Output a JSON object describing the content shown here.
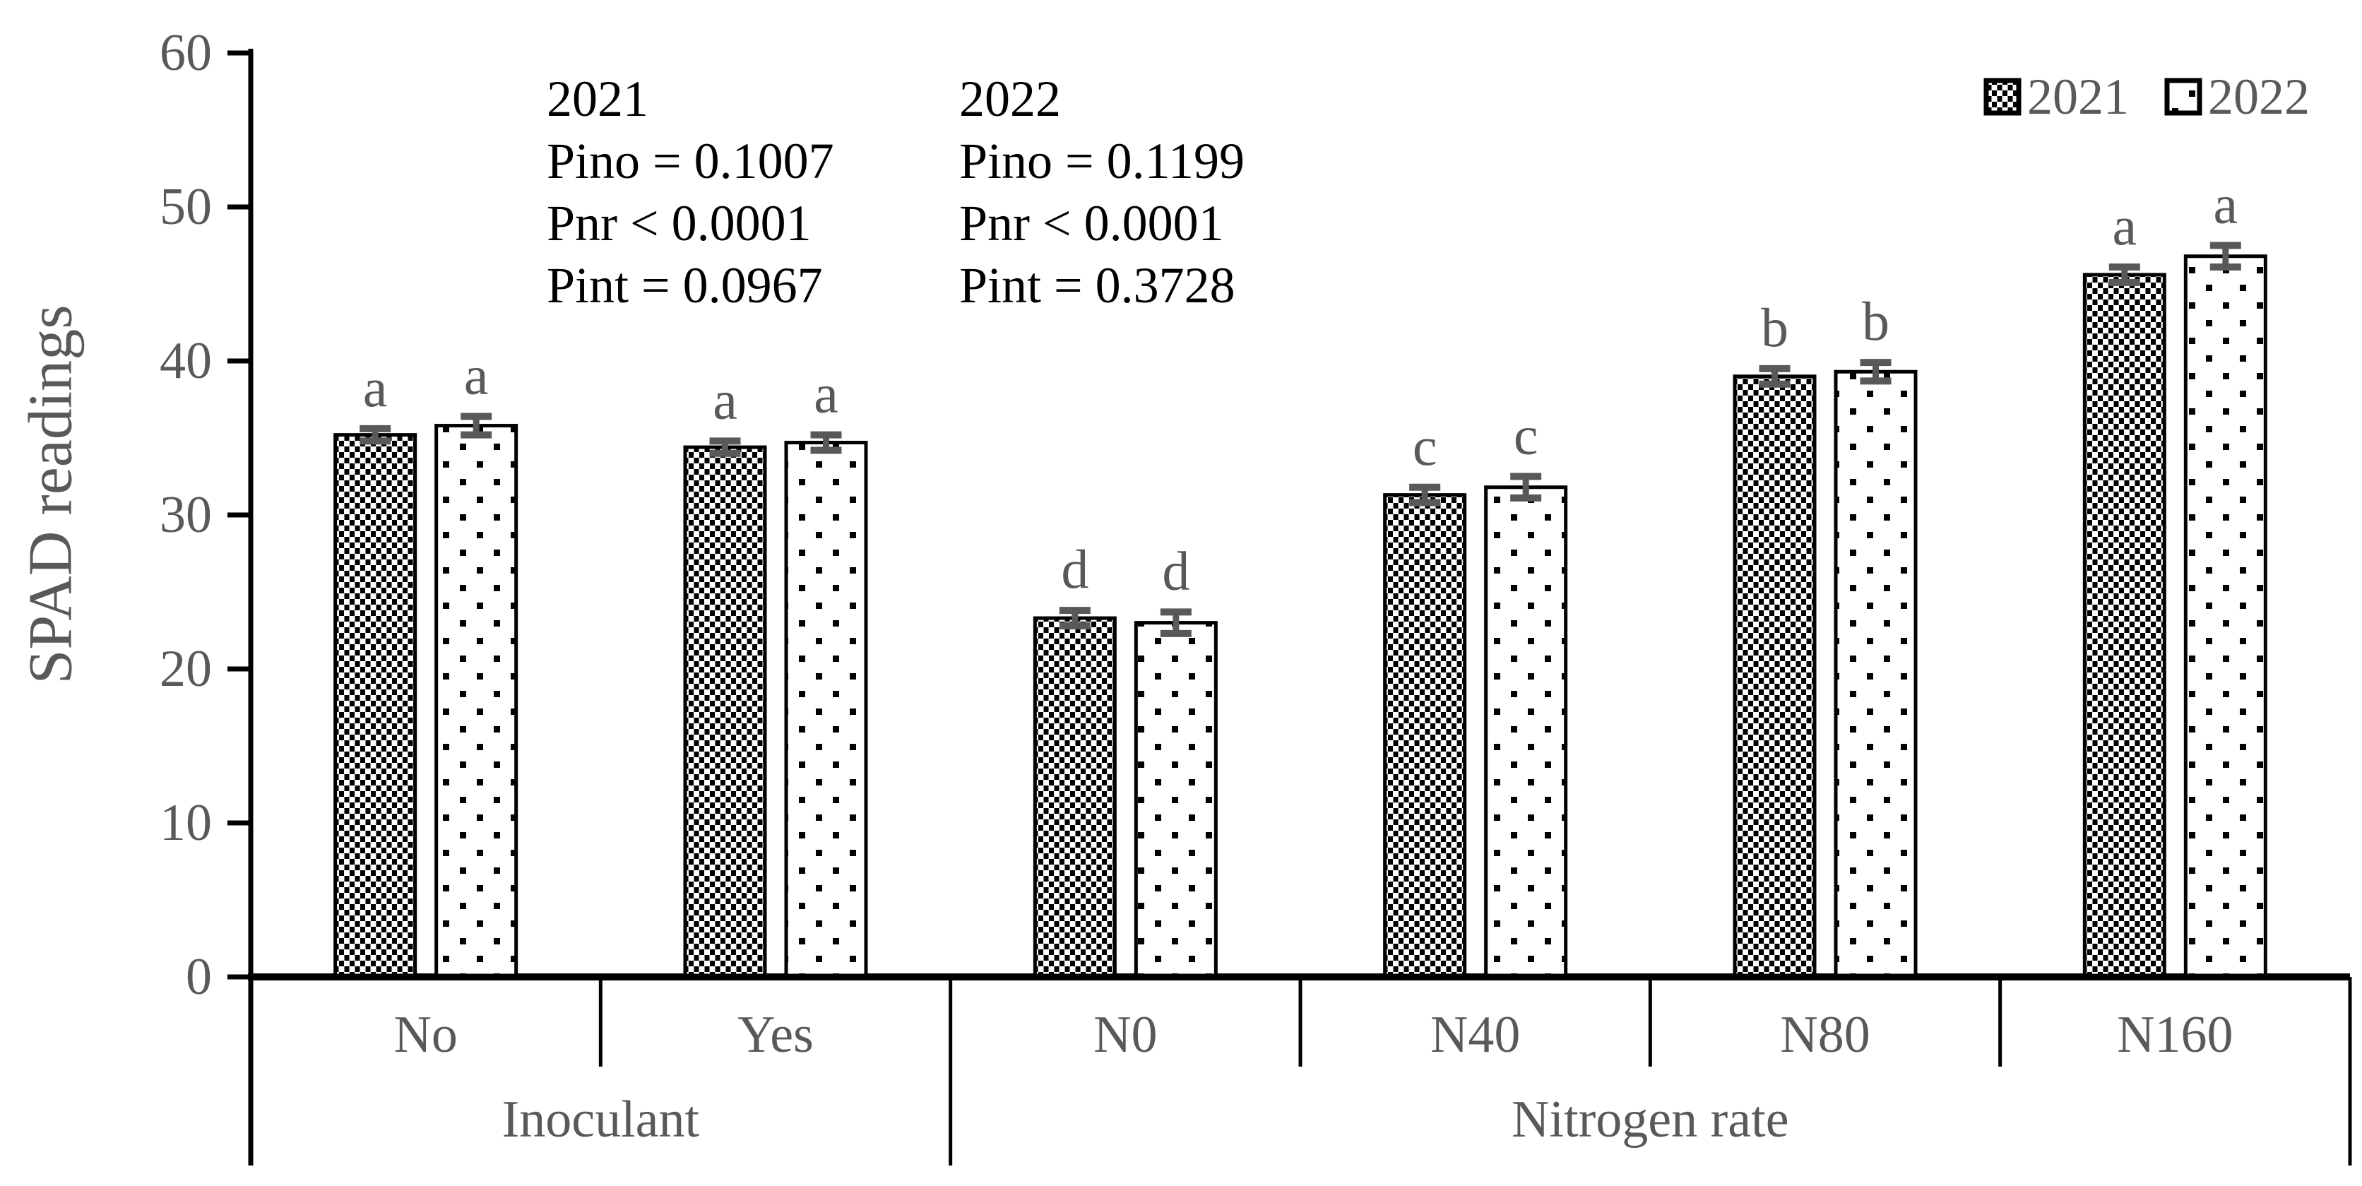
{
  "figure": {
    "background": "#ffffff"
  },
  "y_axis_title": "SPAD readings",
  "legend": {
    "items": [
      {
        "label": "2021",
        "pattern": "dense-dots"
      },
      {
        "label": "2022",
        "pattern": "sparse-dots"
      }
    ]
  },
  "stats_annotations": [
    {
      "title": "2021",
      "lines": [
        "Pino = 0.1007",
        "Pnr < 0.0001",
        "Pint = 0.0967"
      ]
    },
    {
      "title": "2022",
      "lines": [
        "Pino = 0.1199",
        "Pnr < 0.0001",
        "Pint = 0.3728"
      ]
    }
  ],
  "chart_data": {
    "type": "bar",
    "title": "",
    "xlabel": "",
    "ylabel": "SPAD readings",
    "ylim": [
      0,
      60
    ],
    "y_ticks": [
      0,
      10,
      20,
      30,
      40,
      50,
      60
    ],
    "grid": false,
    "legend_position": "top-right",
    "categories": [
      "No",
      "Yes",
      "N0",
      "N40",
      "N80",
      "N160"
    ],
    "group_labels": [
      {
        "label": "Inoculant",
        "start": 0,
        "end": 1
      },
      {
        "label": "Nitrogen rate",
        "start": 2,
        "end": 5
      }
    ],
    "series": [
      {
        "name": "2021",
        "pattern": "dense-dots",
        "values": [
          35.2,
          34.4,
          23.3,
          31.3,
          39.0,
          45.6
        ],
        "errors": [
          0.4,
          0.4,
          0.5,
          0.5,
          0.5,
          0.5
        ]
      },
      {
        "name": "2022",
        "pattern": "sparse-dots",
        "values": [
          35.8,
          34.7,
          23.0,
          31.8,
          39.3,
          46.8
        ],
        "errors": [
          0.6,
          0.5,
          0.7,
          0.7,
          0.6,
          0.7
        ]
      }
    ],
    "sig_letters": [
      "a",
      "a",
      "d",
      "c",
      "b",
      "a"
    ]
  },
  "colors": {
    "axis": "#000000",
    "bar_outline": "#000000",
    "bar_background": "#ffffff",
    "pattern_fill": "#000000",
    "error_bar": "#595959",
    "muted_text": "#595959",
    "stats_text": "#000000"
  }
}
